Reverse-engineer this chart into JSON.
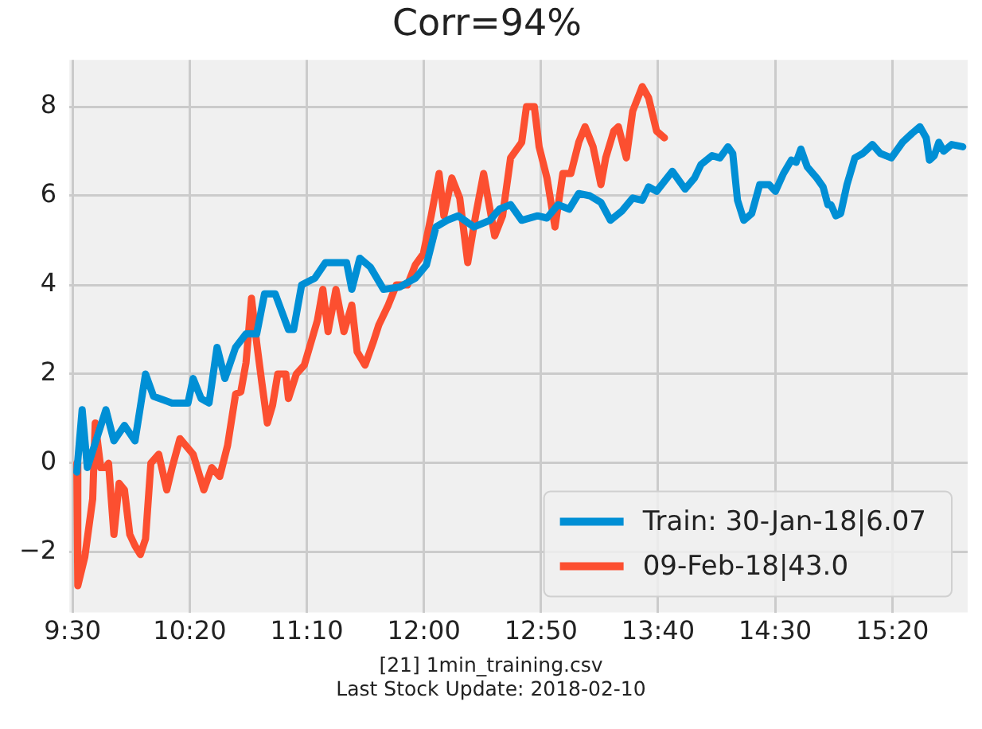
{
  "chart_data": {
    "type": "line",
    "title": "Corr=94%",
    "xlim": [
      9.477,
      15.87
    ],
    "xticks": [
      {
        "value": 9.5,
        "label": "9:30"
      },
      {
        "value": 10.3333,
        "label": "10:20"
      },
      {
        "value": 11.1667,
        "label": "11:10"
      },
      {
        "value": 12,
        "label": "12:00"
      },
      {
        "value": 12.8333,
        "label": "12:50"
      },
      {
        "value": 13.6667,
        "label": "13:40"
      },
      {
        "value": 14.5,
        "label": "14:30"
      },
      {
        "value": 15.3333,
        "label": "15:20"
      }
    ],
    "ylim": [
      -3.35,
      9.05
    ],
    "yticks": [
      -2,
      0,
      2,
      4,
      6,
      8
    ],
    "grid": true,
    "legend": "bottom right",
    "marker": "none",
    "line_style": "solid",
    "series": [
      {
        "name": "Train: 30-Jan-18|6.07",
        "color": "#008fd5",
        "x": [
          9.53,
          9.568,
          9.605,
          9.737,
          9.794,
          9.869,
          9.944,
          10.019,
          10.076,
          10.208,
          10.321,
          10.358,
          10.415,
          10.471,
          10.528,
          10.584,
          10.66,
          10.734,
          10.81,
          10.866,
          10.942,
          11.036,
          11.073,
          11.13,
          11.224,
          11.299,
          11.45,
          11.487,
          11.544,
          11.619,
          11.713,
          11.826,
          11.939,
          12.018,
          12.086,
          12.165,
          12.244,
          12.357,
          12.47,
          12.538,
          12.617,
          12.696,
          12.809,
          12.876,
          12.955,
          13.034,
          13.102,
          13.181,
          13.26,
          13.328,
          13.407,
          13.486,
          13.554,
          13.599,
          13.656,
          13.768,
          13.859,
          13.926,
          13.972,
          14.051,
          14.107,
          14.164,
          14.198,
          14.232,
          14.277,
          14.333,
          14.39,
          14.457,
          14.502,
          14.559,
          14.615,
          14.649,
          14.683,
          14.728,
          14.796,
          14.841,
          14.875,
          14.897,
          14.932,
          14.966,
          15.011,
          15.067,
          15.124,
          15.192,
          15.248,
          15.327,
          15.406,
          15.474,
          15.53,
          15.575,
          15.598,
          15.632,
          15.665,
          15.699,
          15.756,
          15.835
        ],
        "values": [
          -0.2,
          1.2,
          -0.1,
          1.2,
          0.5,
          0.85,
          0.5,
          2.0,
          1.5,
          1.35,
          1.35,
          1.9,
          1.45,
          1.35,
          2.6,
          1.9,
          2.6,
          2.9,
          2.9,
          3.8,
          3.8,
          3.0,
          3.0,
          4.0,
          4.15,
          4.5,
          4.5,
          3.9,
          4.6,
          4.4,
          3.9,
          3.95,
          4.15,
          4.45,
          5.3,
          5.45,
          5.55,
          5.3,
          5.45,
          5.7,
          5.8,
          5.45,
          5.55,
          5.5,
          5.8,
          5.7,
          6.05,
          6.0,
          5.85,
          5.45,
          5.65,
          5.95,
          5.9,
          6.2,
          6.1,
          6.55,
          6.15,
          6.4,
          6.7,
          6.9,
          6.85,
          7.1,
          6.95,
          5.9,
          5.45,
          5.6,
          6.25,
          6.25,
          6.1,
          6.5,
          6.8,
          6.75,
          7.05,
          6.65,
          6.4,
          6.2,
          5.8,
          5.8,
          5.55,
          5.6,
          6.25,
          6.85,
          6.95,
          7.15,
          6.95,
          6.85,
          7.2,
          7.4,
          7.55,
          7.3,
          6.8,
          6.9,
          7.2,
          7.0,
          7.15,
          7.1
        ]
      },
      {
        "name": "09-Feb-18|43.0",
        "color": "#fc4f30",
        "x": [
          9.53,
          9.537,
          9.587,
          9.643,
          9.661,
          9.7,
          9.737,
          9.756,
          9.794,
          9.831,
          9.869,
          9.907,
          9.944,
          9.982,
          10.019,
          10.057,
          10.113,
          10.17,
          10.208,
          10.264,
          10.358,
          10.434,
          10.49,
          10.547,
          10.603,
          10.66,
          10.697,
          10.734,
          10.773,
          10.81,
          10.847,
          10.886,
          10.923,
          10.96,
          11.017,
          11.036,
          11.092,
          11.149,
          11.186,
          11.242,
          11.281,
          11.318,
          11.374,
          11.431,
          11.487,
          11.525,
          11.581,
          11.638,
          11.679,
          11.747,
          11.804,
          11.883,
          11.939,
          11.996,
          12.052,
          12.108,
          12.142,
          12.199,
          12.255,
          12.312,
          12.368,
          12.425,
          12.504,
          12.56,
          12.617,
          12.696,
          12.73,
          12.786,
          12.82,
          12.876,
          12.933,
          12.989,
          13.046,
          13.102,
          13.147,
          13.204,
          13.26,
          13.294,
          13.351,
          13.384,
          13.441,
          13.486,
          13.554,
          13.599,
          13.656,
          13.712
        ],
        "values": [
          0.0,
          -2.75,
          -2.1,
          -0.8,
          0.9,
          -0.1,
          -0.1,
          0.0,
          -1.6,
          -0.45,
          -0.6,
          -1.6,
          -1.85,
          -2.05,
          -1.7,
          0.0,
          0.2,
          -0.6,
          -0.1,
          0.55,
          0.2,
          -0.6,
          -0.1,
          -0.3,
          0.4,
          1.55,
          1.6,
          2.25,
          3.7,
          2.7,
          1.8,
          0.9,
          1.3,
          2.0,
          2.0,
          1.45,
          2.0,
          2.2,
          2.6,
          3.2,
          3.9,
          2.95,
          3.9,
          2.95,
          3.55,
          2.5,
          2.2,
          2.7,
          3.1,
          3.55,
          4.0,
          4.0,
          4.45,
          4.7,
          5.55,
          6.5,
          5.55,
          6.4,
          5.95,
          4.5,
          5.55,
          6.5,
          5.1,
          5.55,
          6.85,
          7.2,
          8.0,
          8.0,
          7.1,
          6.4,
          5.3,
          6.5,
          6.5,
          7.2,
          7.55,
          7.1,
          6.25,
          6.85,
          7.45,
          7.55,
          6.85,
          7.9,
          8.45,
          8.2,
          7.45,
          7.3
        ]
      }
    ],
    "annotations": [
      "[21] 1min_training.csv",
      "Last Stock Update: 2018-02-10"
    ]
  }
}
